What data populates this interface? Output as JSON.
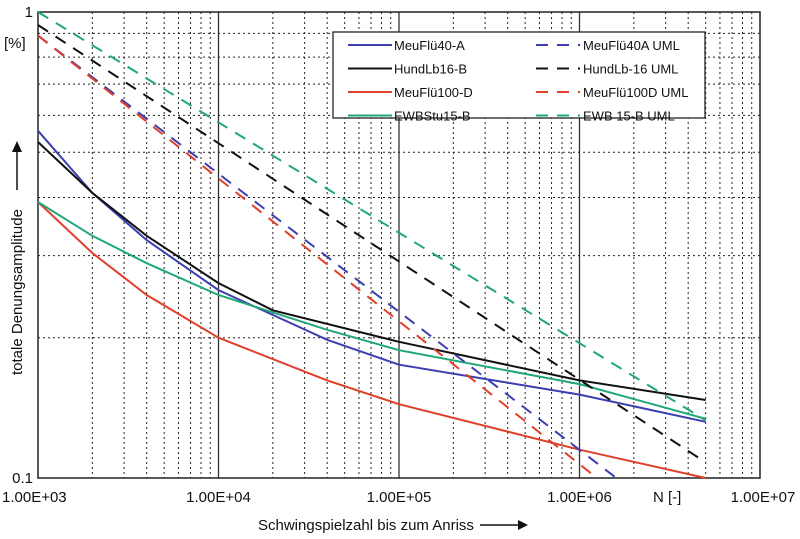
{
  "chart_data": {
    "type": "line",
    "xscale": "log",
    "yscale": "log",
    "xlim": [
      1000,
      10000000
    ],
    "ylim": [
      0.1,
      1
    ],
    "xlabel": "Schwingspielzahl bis zum Anriss",
    "ylabel": "totale Denungsamplitude",
    "y_unit": "[%]",
    "x_unit_annotation": "N [-]",
    "xticks": [
      {
        "v": 1000,
        "label": "1.00E+03"
      },
      {
        "v": 10000,
        "label": "1.00E+04"
      },
      {
        "v": 100000,
        "label": "1.00E+05"
      },
      {
        "v": 1000000,
        "label": "1.00E+06"
      },
      {
        "v": 10000000,
        "label": "1.00E+07"
      }
    ],
    "yticks": [
      {
        "v": 1,
        "label": "1"
      },
      {
        "v": 0.1,
        "label": "0.1"
      }
    ],
    "grid": true,
    "legend_position": "top-right",
    "series": [
      {
        "name": "MeuFlü40-A",
        "color": "#3b3fb0",
        "dash": false,
        "x": [
          1000,
          2000,
          4000,
          10000,
          40000,
          100000,
          1000000,
          5000000
        ],
        "y": [
          0.556,
          0.409,
          0.324,
          0.253,
          0.198,
          0.175,
          0.151,
          0.132
        ]
      },
      {
        "name": "HundLb16-B",
        "color": "#111111",
        "dash": false,
        "x": [
          1000,
          2000,
          4000,
          10000,
          20000,
          100000,
          1000000,
          5000000
        ],
        "y": [
          0.526,
          0.409,
          0.331,
          0.262,
          0.229,
          0.196,
          0.162,
          0.147
        ]
      },
      {
        "name": "MeuFlü100-D",
        "color": "#e0402a",
        "dash": false,
        "x": [
          1000,
          2000,
          4000,
          10000,
          40000,
          100000,
          1000000,
          5000000
        ],
        "y": [
          0.391,
          0.304,
          0.247,
          0.2,
          0.162,
          0.144,
          0.115,
          0.1
        ]
      },
      {
        "name": "EWBStu15-B",
        "color": "#1ea878",
        "dash": false,
        "x": [
          1000,
          2000,
          4000,
          10000,
          40000,
          100000,
          1000000,
          5000000
        ],
        "y": [
          0.391,
          0.331,
          0.289,
          0.247,
          0.208,
          0.188,
          0.159,
          0.134
        ]
      },
      {
        "name": "MeuFlü40A UML",
        "color": "#3b3fb0",
        "dash": true,
        "x": [
          1000,
          1600000
        ],
        "y": [
          0.89,
          0.1
        ]
      },
      {
        "name": "HundLb-16 UML",
        "color": "#111111",
        "dash": true,
        "x": [
          1000,
          5000000
        ],
        "y": [
          0.938,
          0.108
        ]
      },
      {
        "name": "MeuFlü100D UML",
        "color": "#e0402a",
        "dash": true,
        "x": [
          1000,
          1250000
        ],
        "y": [
          0.89,
          0.1
        ]
      },
      {
        "name": "EWB 15-B UML",
        "color": "#1ea878",
        "dash": true,
        "x": [
          1000,
          5000000
        ],
        "y": [
          1.0,
          0.133
        ]
      }
    ]
  }
}
